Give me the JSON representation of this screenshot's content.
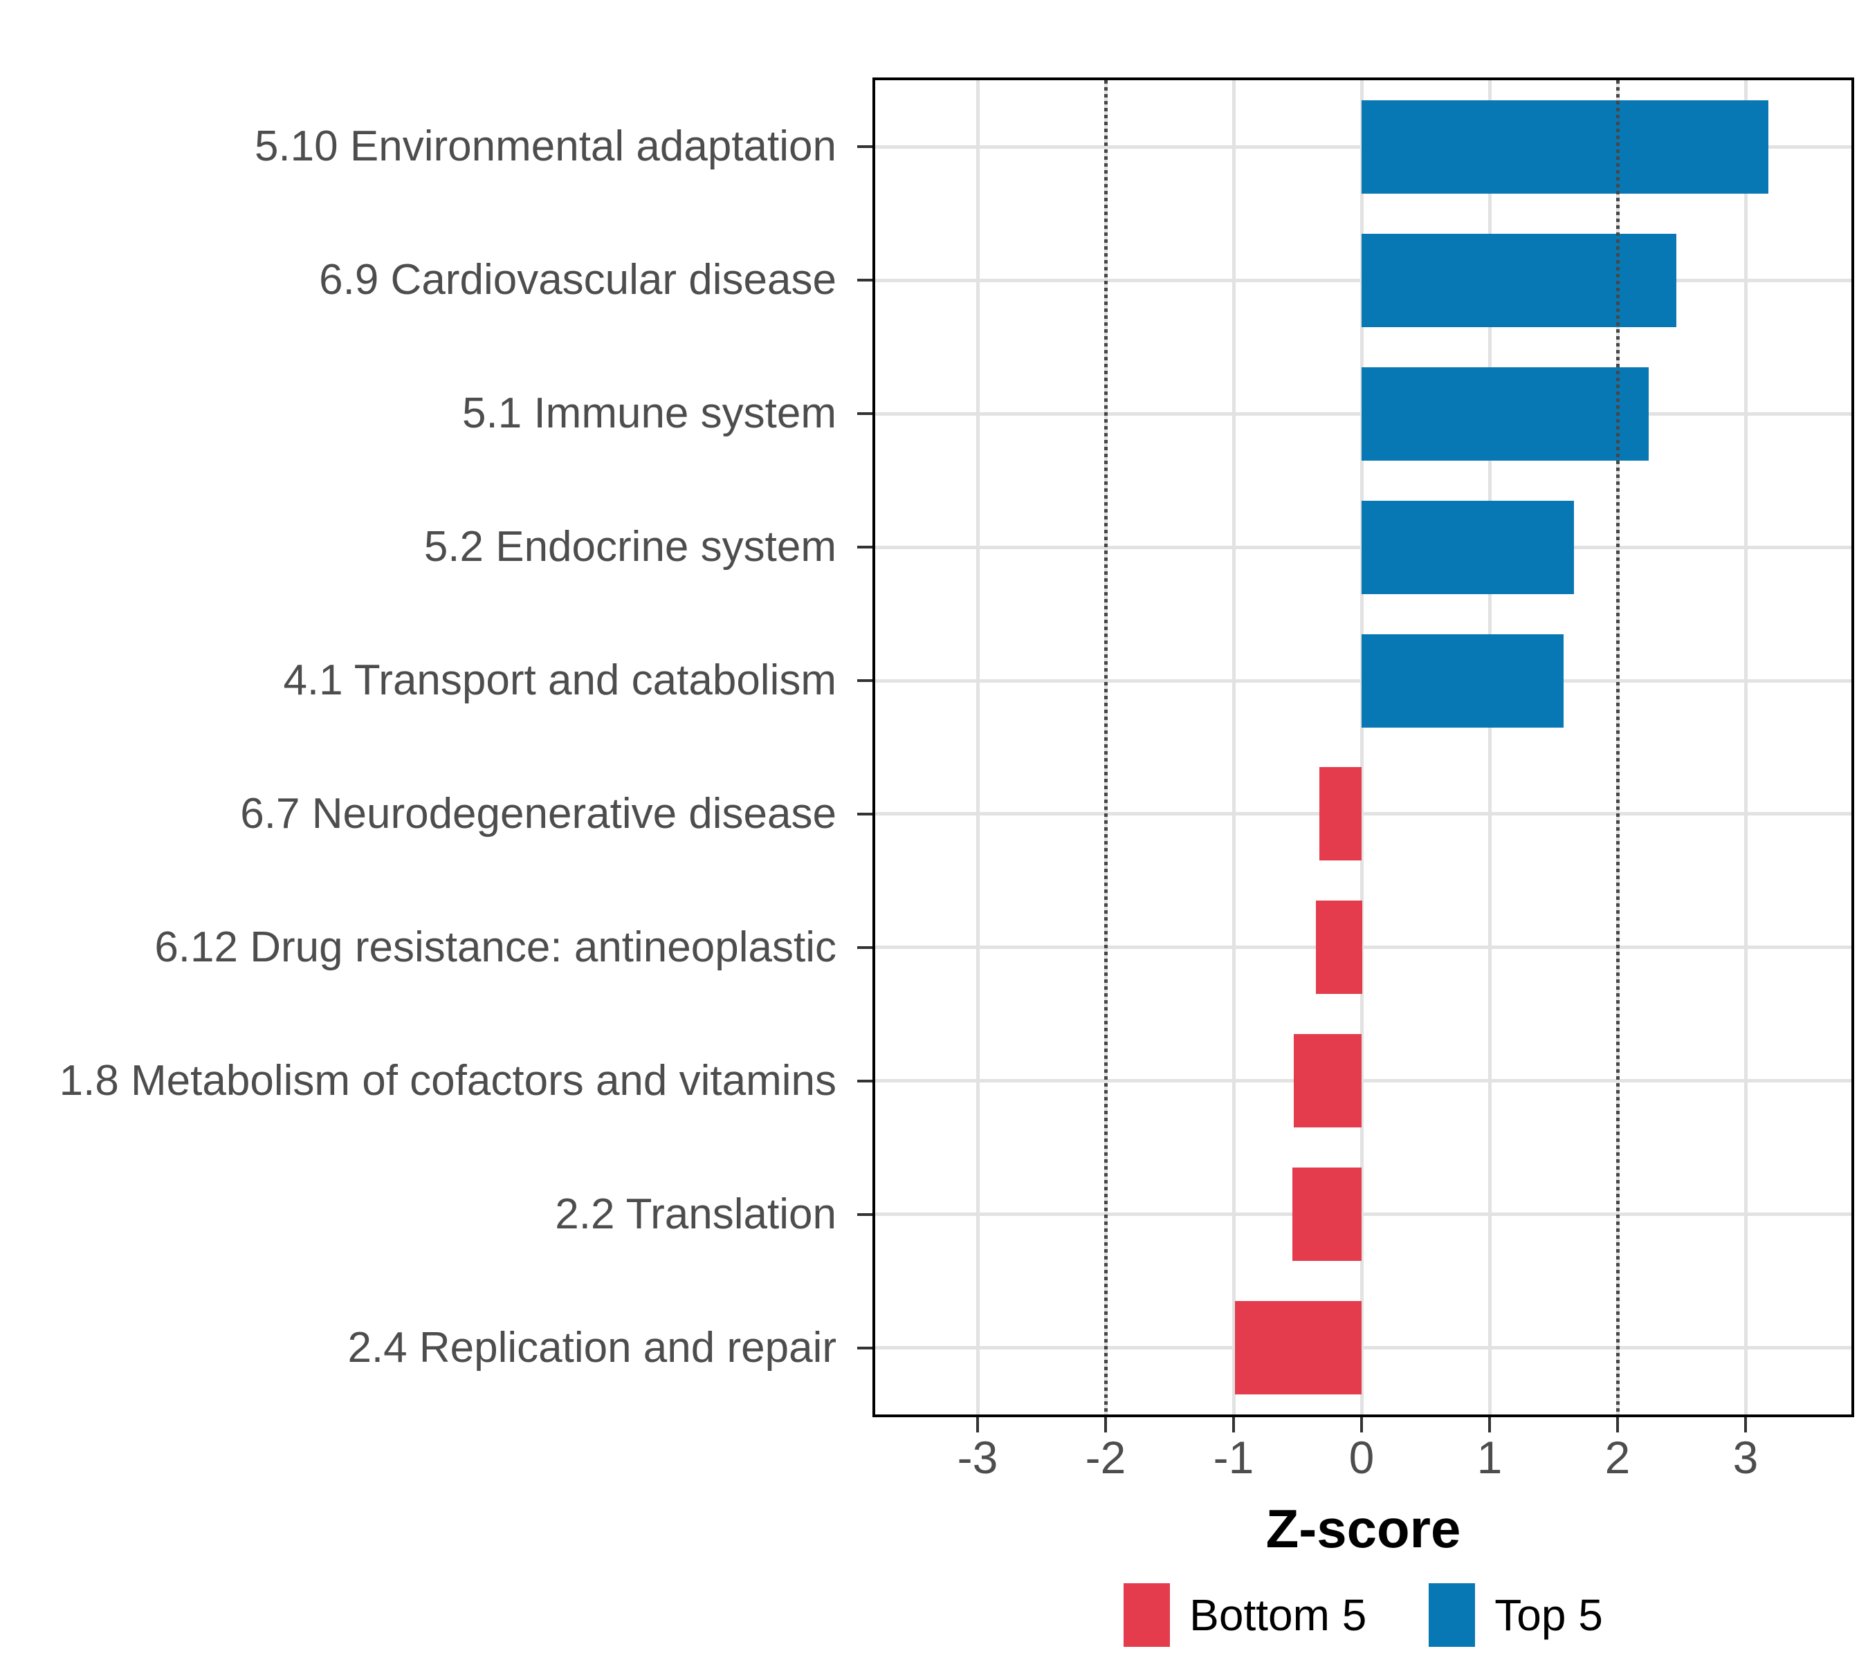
{
  "chart_data": {
    "type": "bar",
    "orientation": "horizontal",
    "title": "",
    "xlabel": "Z-score",
    "categories": [
      "5.10 Environmental adaptation",
      "6.9 Cardiovascular disease",
      "5.1 Immune system",
      "5.2 Endocrine system",
      "4.1 Transport and catabolism",
      "6.7 Neurodegenerative disease",
      "6.12 Drug resistance: antineoplastic",
      "1.8 Metabolism of cofactors and vitamins",
      "2.2 Translation",
      "2.4 Replication and repair"
    ],
    "values": [
      3.18,
      2.46,
      2.24,
      1.66,
      1.58,
      -0.33,
      -0.36,
      -0.53,
      -0.54,
      -0.99
    ],
    "groups": [
      "Top 5",
      "Top 5",
      "Top 5",
      "Top 5",
      "Top 5",
      "Bottom 5",
      "Bottom 5",
      "Bottom 5",
      "Bottom 5",
      "Bottom 5"
    ],
    "colors": {
      "Top 5": "#0878b4",
      "Bottom 5": "#e43c4c"
    },
    "x_ticks": [
      -3,
      -2,
      -1,
      0,
      1,
      2,
      3
    ],
    "xlim": [
      -3.8,
      3.825
    ],
    "reference_lines": [
      -2,
      2
    ],
    "grid": true,
    "legend_position": "bottom",
    "legend": [
      {
        "label": "Bottom 5",
        "color": "#e43c4c"
      },
      {
        "label": "Top 5",
        "color": "#0878b4"
      }
    ]
  }
}
